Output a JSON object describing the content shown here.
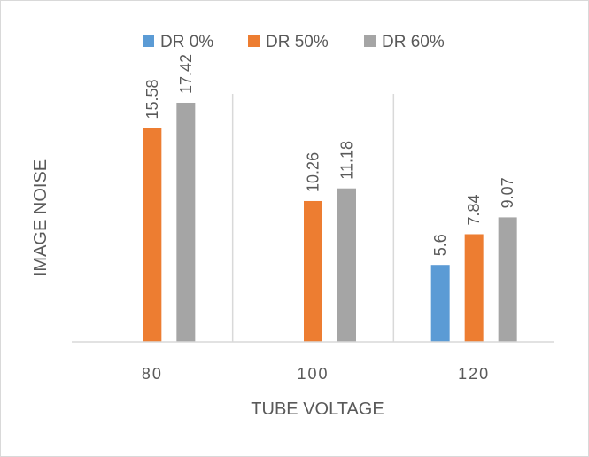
{
  "chart_data": {
    "type": "bar",
    "categories": [
      "80",
      "100",
      "120"
    ],
    "series": [
      {
        "name": "DR 0%",
        "color": "#5b9bd5",
        "values": [
          null,
          null,
          5.6
        ]
      },
      {
        "name": "DR 50%",
        "color": "#ed7d31",
        "values": [
          15.58,
          10.26,
          7.84
        ]
      },
      {
        "name": "DR 60%",
        "color": "#a5a5a5",
        "values": [
          17.42,
          11.18,
          9.07
        ]
      }
    ],
    "data_labels": [
      [
        "",
        "15.58",
        "17.42"
      ],
      [
        "",
        "10.26",
        "11.18"
      ],
      [
        "5.6",
        "7.84",
        "9.07"
      ]
    ],
    "xlabel": "TUBE VOLTAGE",
    "ylabel": "IMAGE NOISE",
    "ylim": [
      0,
      20
    ],
    "legend_position": "top",
    "grid": false,
    "category_separators": true
  }
}
